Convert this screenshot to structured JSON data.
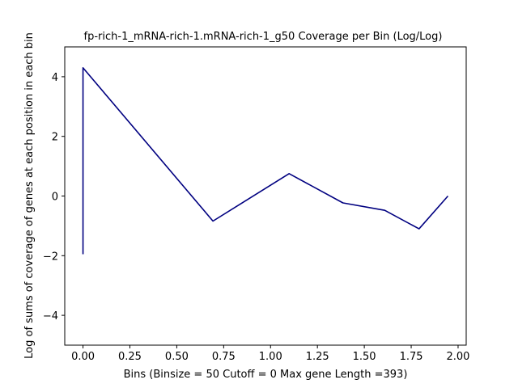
{
  "chart_data": {
    "type": "line",
    "title": "fp-rich-1_mRNA-rich-1.mRNA-rich-1_g50 Coverage per Bin (Log/Log)",
    "xlabel": "Bins  (Binsize = 50 Cutoff = 0 Max gene Length =393)",
    "ylabel": "Log of sums of coverage of genes at each position in each bin",
    "xlim": [
      -0.0973,
      2.0433
    ],
    "ylim": [
      -5,
      5
    ],
    "x_ticks": [
      0.0,
      0.25,
      0.5,
      0.75,
      1.0,
      1.25,
      1.5,
      1.75,
      2.0
    ],
    "x_tick_labels": [
      "0.00",
      "0.25",
      "0.50",
      "0.75",
      "1.00",
      "1.25",
      "1.50",
      "1.75",
      "2.00"
    ],
    "y_ticks": [
      -4,
      -2,
      0,
      2,
      4
    ],
    "y_tick_labels": [
      "−4",
      "−2",
      "0",
      "2",
      "4"
    ],
    "grid": false,
    "series": [
      {
        "color": "#000080",
        "x": [
          0.0,
          0.0,
          0.693,
          1.099,
          1.386,
          1.609,
          1.792,
          1.946
        ],
        "y": [
          -1.95,
          4.3,
          -0.84,
          0.75,
          -0.23,
          -0.48,
          -1.1,
          0.0
        ]
      }
    ]
  }
}
